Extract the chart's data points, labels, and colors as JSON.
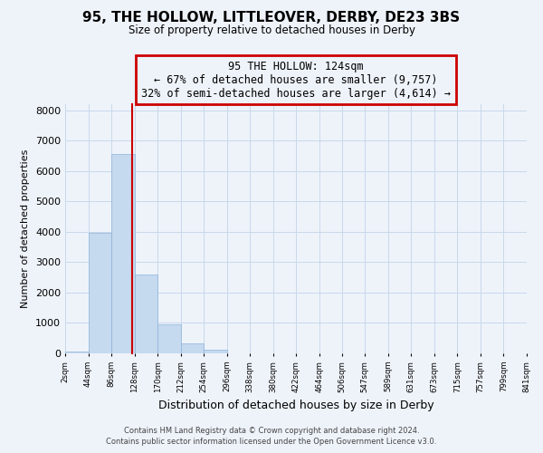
{
  "title": "95, THE HOLLOW, LITTLEOVER, DERBY, DE23 3BS",
  "subtitle": "Size of property relative to detached houses in Derby",
  "xlabel": "Distribution of detached houses by size in Derby",
  "ylabel": "Number of detached properties",
  "bin_edges": [
    2,
    44,
    86,
    128,
    170,
    212,
    254,
    296,
    338,
    380,
    422,
    464,
    506,
    547,
    589,
    631,
    673,
    715,
    757,
    799,
    841
  ],
  "bin_labels": [
    "2sqm",
    "44sqm",
    "86sqm",
    "128sqm",
    "170sqm",
    "212sqm",
    "254sqm",
    "296sqm",
    "338sqm",
    "380sqm",
    "422sqm",
    "464sqm",
    "506sqm",
    "547sqm",
    "589sqm",
    "631sqm",
    "673sqm",
    "715sqm",
    "757sqm",
    "799sqm",
    "841sqm"
  ],
  "bar_heights": [
    60,
    3980,
    6560,
    2600,
    960,
    330,
    130,
    0,
    0,
    0,
    0,
    0,
    0,
    0,
    0,
    0,
    0,
    0,
    0,
    0
  ],
  "bar_color": "#C5D9EF",
  "bar_edgecolor": "#8EB4D8",
  "property_line_x": 124,
  "property_line_color": "#CC0000",
  "annotation_title": "95 THE HOLLOW: 124sqm",
  "annotation_line1": "← 67% of detached houses are smaller (9,757)",
  "annotation_line2": "32% of semi-detached houses are larger (4,614) →",
  "annotation_box_color": "#CC0000",
  "ylim": [
    0,
    8200
  ],
  "yticks": [
    0,
    1000,
    2000,
    3000,
    4000,
    5000,
    6000,
    7000,
    8000
  ],
  "grid_color": "#C8D8EA",
  "background_color": "#EEF3FA",
  "footer1": "Contains HM Land Registry data © Crown copyright and database right 2024.",
  "footer2": "Contains public sector information licensed under the Open Government Licence v3.0."
}
